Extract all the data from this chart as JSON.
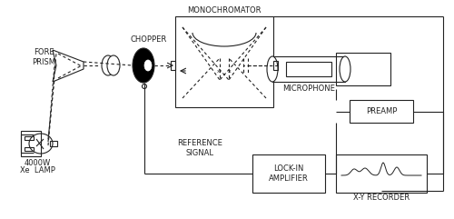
{
  "bg_color": "#ffffff",
  "line_color": "#222222",
  "fig_width": 5.0,
  "fig_height": 2.41,
  "dpi": 100,
  "labels": {
    "monochromator": "MONOCHROMATOR",
    "chopper": "CHOPPER",
    "fore_prism": "FORE\nPRISM",
    "lamp_power": "4000W",
    "lamp_type": "Xe  LAMP",
    "microphone": "MICROPHONE",
    "preamp": "PREAMP",
    "lock_in": "LOCK-IN\nAMPLIFIER",
    "xy_recorder": "X-Y RECORDER",
    "ref_signal": "REFERENCE\nSIGNAL"
  },
  "font_size": 5.5
}
